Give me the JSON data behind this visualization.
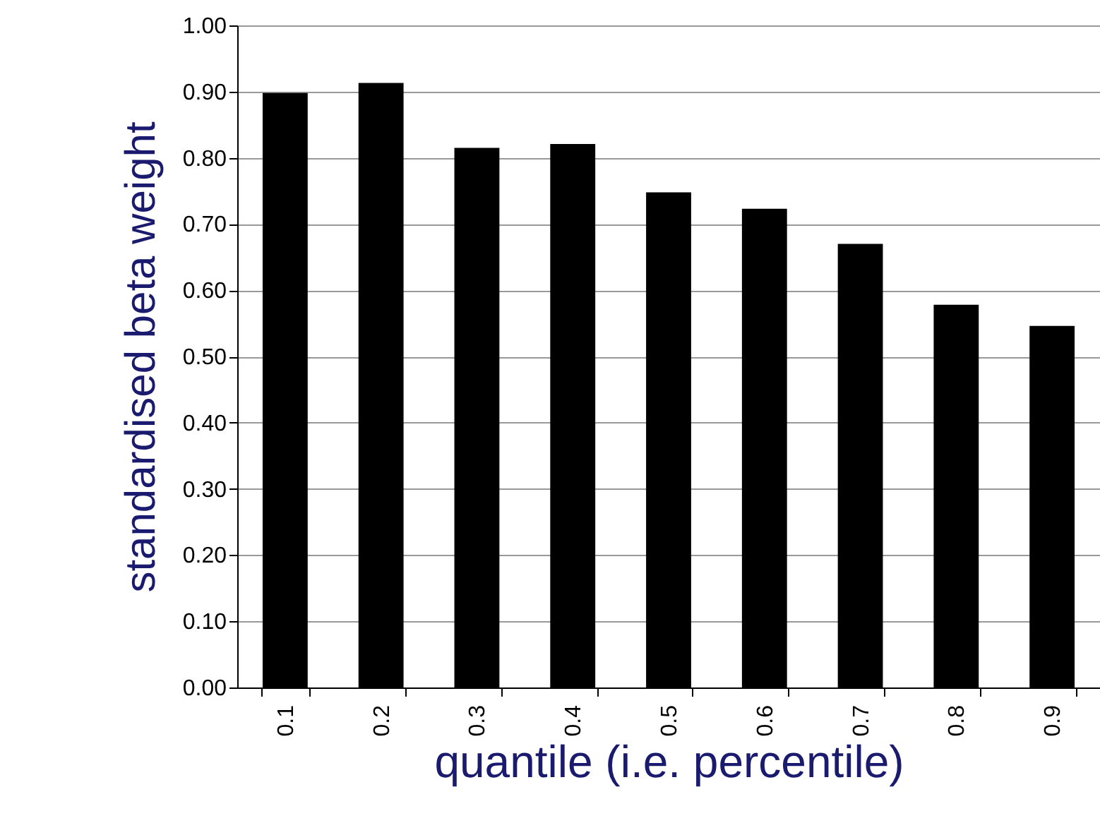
{
  "chart_data": {
    "type": "bar",
    "xlabel": "quantile (i.e. percentile)",
    "ylabel": "standardised beta weight",
    "categories": [
      "0.1",
      "0.2",
      "0.3",
      "0.4",
      "0.5",
      "0.6",
      "0.7",
      "0.8",
      "0.9"
    ],
    "values": [
      0.898,
      0.913,
      0.815,
      0.821,
      0.748,
      0.723,
      0.67,
      0.578,
      0.546
    ],
    "color": "#000000",
    "ylim": [
      0,
      1
    ],
    "yticks": [
      {
        "value": 0,
        "label": "0.00"
      },
      {
        "value": 0.1,
        "label": "0.10"
      },
      {
        "value": 0.2,
        "label": "0.20"
      },
      {
        "value": 0.3,
        "label": "0.30"
      },
      {
        "value": 0.4,
        "label": "0.40"
      },
      {
        "value": 0.5,
        "label": "0.50"
      },
      {
        "value": 0.6,
        "label": "0.60"
      },
      {
        "value": 0.7,
        "label": "0.70"
      },
      {
        "value": 0.8,
        "label": "0.80"
      },
      {
        "value": 0.9,
        "label": "0.90"
      },
      {
        "value": 1,
        "label": "1.00"
      }
    ],
    "grid": "y"
  }
}
